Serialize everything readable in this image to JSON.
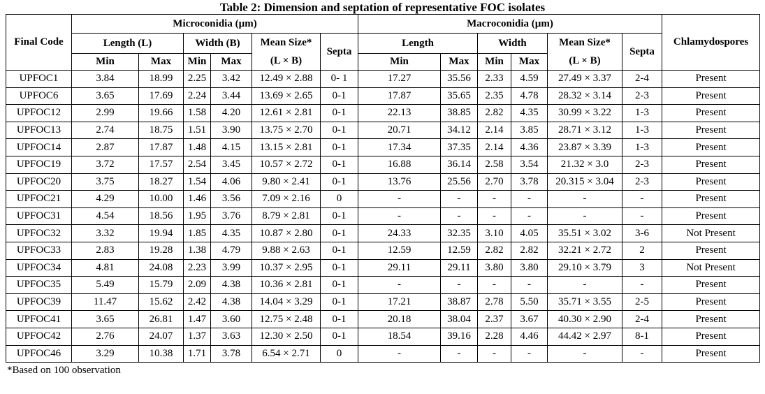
{
  "title": "Table 2: Dimension and septation of representative FOC isolates",
  "footnote": "*Based on 100 observation",
  "table": {
    "headers": {
      "final_code": "Final Code",
      "microconidia_group": "Microconidia (µm)",
      "macroconidia_group": "Macroconidia (µm)",
      "chlamydospores": "Chlamydospores",
      "length_l": "Length (L)",
      "width_b": "Width (B)",
      "length": "Length",
      "width": "Width",
      "mean_size_line1": "Mean Size*",
      "mean_size_line2": "(L × B)",
      "septa": "Septa",
      "min": "Min",
      "max": "Max"
    },
    "column_keys": [
      "final-code",
      "micro-length-min",
      "micro-length-max",
      "micro-width-min",
      "micro-width-max",
      "micro-mean-size",
      "micro-septa",
      "macro-length-min",
      "macro-length-max",
      "macro-width-min",
      "macro-width-max",
      "macro-mean-size",
      "macro-septa",
      "chlamydospores"
    ],
    "rows": [
      [
        "UPFOC1",
        "3.84",
        "18.99",
        "2.25",
        "3.42",
        "12.49 × 2.88",
        "0- 1",
        "17.27",
        "35.56",
        "2.33",
        "4.59",
        "27.49 × 3.37",
        "2-4",
        "Present"
      ],
      [
        "UPFOC6",
        "3.65",
        "17.69",
        "2.24",
        "3.44",
        "13.69 × 2.65",
        "0-1",
        "17.87",
        "35.65",
        "2.35",
        "4.78",
        "28.32 × 3.14",
        "2-3",
        "Present"
      ],
      [
        "UPFOC12",
        "2.99",
        "19.66",
        "1.58",
        "4.20",
        "12.61 × 2.81",
        "0-1",
        "22.13",
        "38.85",
        "2.82",
        "4.35",
        "30.99 × 3.22",
        "1-3",
        "Present"
      ],
      [
        "UPFOC13",
        "2.74",
        "18.75",
        "1.51",
        "3.90",
        "13.75 × 2.70",
        "0-1",
        "20.71",
        "34.12",
        "2.14",
        "3.85",
        "28.71 × 3.12",
        "1-3",
        "Present"
      ],
      [
        "UPFOC14",
        "2.87",
        "17.87",
        "1.48",
        "4.15",
        "13.15 × 2.81",
        "0-1",
        "17.34",
        "37.35",
        "2.14",
        "4.36",
        "23.87 × 3.39",
        "1-3",
        "Present"
      ],
      [
        "UPFOC19",
        "3.72",
        "17.57",
        "2.54",
        "3.45",
        "10.57 × 2.72",
        "0-1",
        "16.88",
        "36.14",
        "2.58",
        "3.54",
        "21.32 × 3.0",
        "2-3",
        "Present"
      ],
      [
        "UPFOC20",
        "3.75",
        "18.27",
        "1.54",
        "4.06",
        "9.80 × 2.41",
        "0-1",
        "13.76",
        "25.56",
        "2.70",
        "3.78",
        "20.315 × 3.04",
        "2-3",
        "Present"
      ],
      [
        "UPFOC21",
        "4.29",
        "10.00",
        "1.46",
        "3.56",
        "7.09 × 2.16",
        "0",
        "-",
        "-",
        "-",
        "-",
        "-",
        "-",
        "Present"
      ],
      [
        "UPFOC31",
        "4.54",
        "18.56",
        "1.95",
        "3.76",
        "8.79 × 2.81",
        "0-1",
        "-",
        "-",
        "-",
        "-",
        "-",
        "-",
        "Present"
      ],
      [
        "UPFOC32",
        "3.32",
        "19.94",
        "1.85",
        "4.35",
        "10.87 × 2.80",
        "0-1",
        "24.33",
        "32.35",
        "3.10",
        "4.05",
        "35.51 × 3.02",
        "3-6",
        "Not Present"
      ],
      [
        "UPFOC33",
        "2.83",
        "19.28",
        "1.38",
        "4.79",
        "9.88 × 2.63",
        "0-1",
        "12.59",
        "12.59",
        "2.82",
        "2.82",
        "32.21 × 2.72",
        "2",
        "Present"
      ],
      [
        "UPFOC34",
        "4.81",
        "24.08",
        "2.23",
        "3.99",
        "10.37 × 2.95",
        "0-1",
        "29.11",
        "29.11",
        "3.80",
        "3.80",
        "29.10 × 3.79",
        "3",
        "Not Present"
      ],
      [
        "UPFOC35",
        "5.49",
        "15.79",
        "2.09",
        "4.38",
        "10.36 × 2.81",
        "0-1",
        "-",
        "-",
        "-",
        "-",
        "-",
        "-",
        "Present"
      ],
      [
        "UPFOC39",
        "11.47",
        "15.62",
        "2.42",
        "4.38",
        "14.04 × 3.29",
        "0-1",
        "17.21",
        "38.87",
        "2.78",
        "5.50",
        "35.71 × 3.55",
        "2-5",
        "Present"
      ],
      [
        "UPFOC41",
        "3.65",
        "26.81",
        "1.47",
        "3.60",
        "12.75 × 2.48",
        "0-1",
        "20.18",
        "38.04",
        "2.37",
        "3.67",
        "40.30 × 2.90",
        "2-4",
        "Present"
      ],
      [
        "UPFOC42",
        "2.76",
        "24.07",
        "1.37",
        "3.63",
        "12.30 × 2.50",
        "0-1",
        "18.54",
        "39.16",
        "2.28",
        "4.46",
        "44.42 × 2.97",
        "8-1",
        "Present"
      ],
      [
        "UPFOC46",
        "3.29",
        "10.38",
        "1.71",
        "3.78",
        "6.54 × 2.71",
        "0",
        "-",
        "-",
        "-",
        "-",
        "-",
        "-",
        "Present"
      ]
    ]
  }
}
